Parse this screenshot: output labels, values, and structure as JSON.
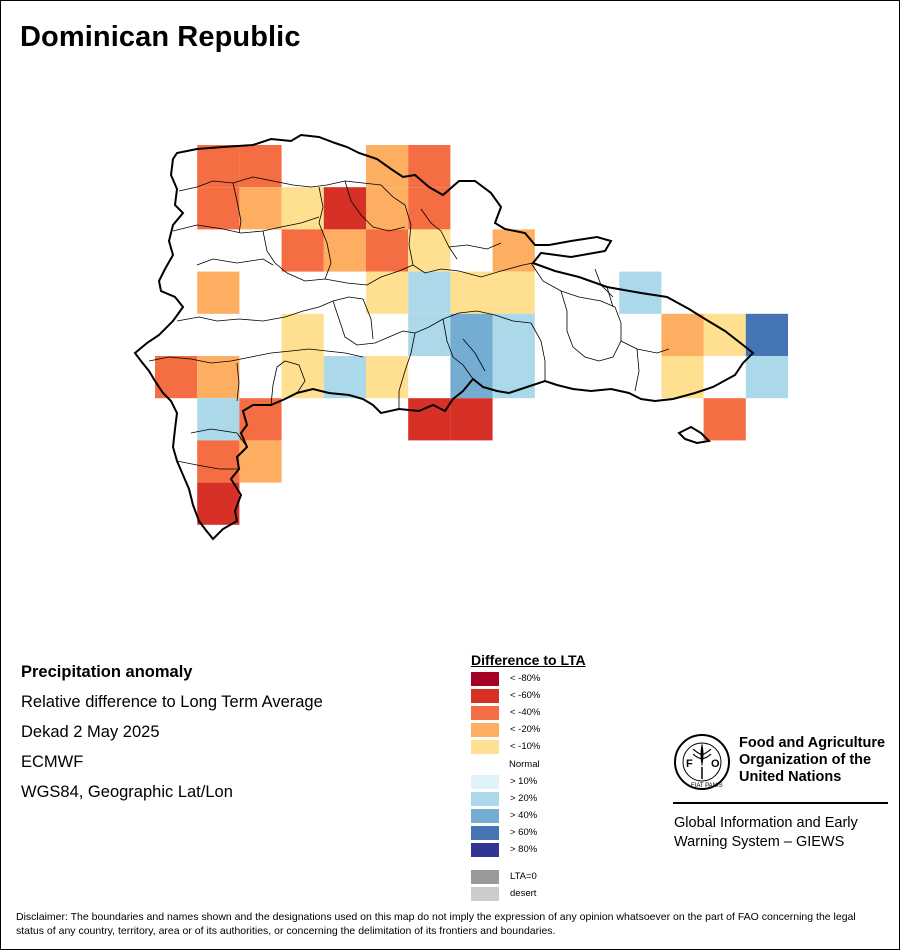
{
  "title": "Dominican Republic",
  "info": {
    "heading": "Precipitation anomaly",
    "subtitle": "Relative difference to Long Term Average",
    "period": "Dekad 2 May 2025",
    "source": "ECMWF",
    "projection": "WGS84, Geographic Lat/Lon"
  },
  "legend": {
    "title": "Difference to LTA",
    "items": [
      {
        "label": "< -80%",
        "color": "#a50026"
      },
      {
        "label": "< -60%",
        "color": "#d73027"
      },
      {
        "label": "< -40%",
        "color": "#f46d43"
      },
      {
        "label": "< -20%",
        "color": "#fdae61"
      },
      {
        "label": "< -10%",
        "color": "#fee090"
      },
      {
        "label": "Normal",
        "color": "#ffffff"
      },
      {
        "label": "> 10%",
        "color": "#e0f3f8"
      },
      {
        "label": "> 20%",
        "color": "#abd9e9"
      },
      {
        "label": "> 40%",
        "color": "#74add1"
      },
      {
        "label": "> 60%",
        "color": "#4575b4"
      },
      {
        "label": "> 80%",
        "color": "#313695"
      },
      {
        "label": "LTA=0",
        "color": "#999999"
      },
      {
        "label": "desert",
        "color": "#cccccc"
      }
    ]
  },
  "fao": {
    "logo_text": "FAO",
    "motto": "FIAT PANIS",
    "name_lines": [
      "Food and Agriculture",
      "Organization of the",
      "United Nations"
    ],
    "system_lines": [
      "Global Information and Early",
      "Warning System – GIEWS"
    ]
  },
  "disclaimer": "Disclaimer: The boundaries and names shown and the designations used on this map do not imply the expression of any opinion whatsoever on the part of FAO concerning the legal status of any country, territory, area or of its authorities, or concerning the delimitation of its frontiers and boundaries.",
  "grid": {
    "rows": [
      [
        "",
        "c3",
        "c3",
        "",
        "",
        "c4",
        "c3",
        "",
        "",
        "",
        "",
        "",
        "",
        "",
        ""
      ],
      [
        "",
        "c3",
        "c4",
        "c5",
        "c2",
        "c4",
        "c3",
        "",
        "",
        "",
        "",
        "",
        "",
        "",
        ""
      ],
      [
        "",
        "",
        "",
        "c3",
        "c4",
        "c3",
        "c5",
        "",
        "c4",
        "",
        "",
        "",
        "",
        "",
        ""
      ],
      [
        "",
        "c4",
        "",
        "",
        "",
        "c5",
        "b2",
        "c5",
        "c5",
        "",
        "",
        "b2",
        "",
        "",
        ""
      ],
      [
        "",
        "",
        "",
        "c5",
        "",
        "",
        "b2",
        "b3",
        "b2",
        "",
        "",
        "",
        "c4",
        "c5",
        "b4"
      ],
      [
        "c3",
        "c4",
        "",
        "c5",
        "b2",
        "c5",
        "",
        "b3",
        "b2",
        "",
        "",
        "",
        "c5",
        "",
        "b2"
      ],
      [
        "",
        "b2",
        "c3",
        "",
        "",
        "",
        "c2",
        "c2",
        "",
        "",
        "",
        "",
        "",
        "c3",
        ""
      ],
      [
        "",
        "c3",
        "c4",
        "",
        "",
        "",
        "",
        "",
        "",
        "",
        "",
        "",
        "",
        "",
        ""
      ],
      [
        "",
        "c2",
        "",
        "",
        "",
        "",
        "",
        "",
        "",
        "",
        "",
        "",
        "",
        "",
        ""
      ]
    ]
  }
}
